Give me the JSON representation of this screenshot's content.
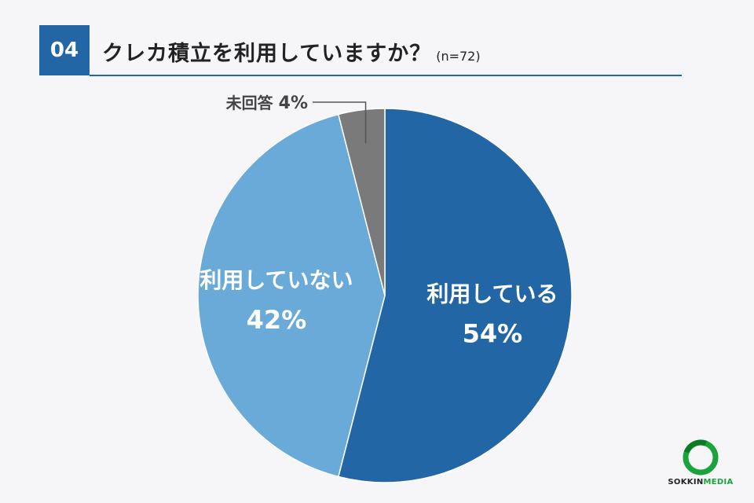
{
  "header": {
    "number": "04",
    "title": "クレカ積立を利用していますか？",
    "sample": "(n=72)",
    "accent_color": "#2366a6"
  },
  "chart_data": {
    "type": "pie",
    "slices": [
      {
        "label": "利用している",
        "value": 54,
        "display": "54%",
        "color": "#2366a6"
      },
      {
        "label": "利用していない",
        "value": 42,
        "display": "42%",
        "color": "#6aaad8"
      },
      {
        "label": "未回答",
        "value": 4,
        "display": "4%",
        "color": "#7a7a7a"
      }
    ]
  },
  "brand": {
    "name_part1": "SOKKIN",
    "name_part2": "MEDIA",
    "color": "#19a33a"
  }
}
